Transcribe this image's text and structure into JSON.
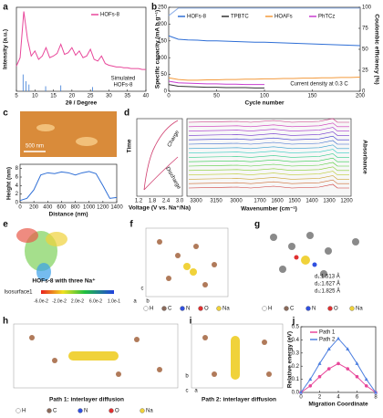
{
  "panels": [
    "a",
    "b",
    "c",
    "d",
    "e",
    "f",
    "g",
    "h",
    "i",
    "j"
  ],
  "chart_data": [
    {
      "type": "line",
      "x_label": "2θ / Degree",
      "y_label": "Intensity (a.u.)",
      "x": [
        5,
        6,
        7,
        8,
        9,
        10,
        11,
        12,
        13,
        14,
        15,
        16,
        17,
        18,
        19,
        20,
        21,
        22,
        23,
        24,
        25,
        26,
        27,
        28,
        29,
        30,
        31,
        32,
        33,
        34,
        35,
        36,
        37,
        38,
        39,
        40
      ],
      "series": [
        {
          "name": "HOFs-8",
          "color": "#e8479a",
          "values": [
            0.3,
            0.4,
            0.95,
            0.62,
            0.42,
            0.48,
            0.38,
            0.42,
            0.52,
            0.4,
            0.42,
            0.45,
            0.56,
            0.44,
            0.46,
            0.52,
            0.43,
            0.48,
            0.4,
            0.42,
            0.5,
            0.38,
            0.36,
            0.42,
            0.33,
            0.31,
            0.3,
            0.29,
            0.29,
            0.28,
            0.28,
            0.27,
            0.27,
            0.27,
            0.26,
            0.26
          ]
        },
        {
          "name": "Simulated",
          "type": "stem",
          "color": "#3a7bd5",
          "x": [
            6.8,
            7.6,
            8.4,
            12.9,
            17,
            25.6
          ],
          "values": [
            0.2,
            0.12,
            0.08,
            0.06,
            0.07,
            0.05
          ]
        }
      ],
      "annotations": [
        "HOFs-8"
      ],
      "xlim": [
        5,
        40
      ],
      "xticks": [
        5,
        10,
        15,
        20,
        25,
        30,
        35,
        40
      ],
      "ylim": [
        0,
        1
      ]
    },
    {
      "type": "line",
      "x_label": "Cycle number",
      "y_label": "Specific capacity (mA h g⁻¹)",
      "y2_label": "Coulombic efficiency (%)",
      "x": [
        0,
        10,
        20,
        30,
        40,
        50,
        60,
        70,
        80,
        90,
        100,
        110,
        120,
        130,
        140,
        150,
        160,
        170,
        180,
        190,
        200
      ],
      "series": [
        {
          "name": "HOFs-8",
          "color": "#2f6fd6",
          "values": [
            165,
            155,
            153,
            152,
            150,
            150,
            149,
            148,
            147,
            146,
            146,
            145,
            144,
            143,
            142,
            141,
            140,
            139,
            138,
            137,
            136
          ]
        },
        {
          "name": "TPBTC",
          "color": "#333333",
          "values": [
            20,
            15,
            14,
            13,
            12,
            12,
            11,
            11,
            11,
            10,
            10,
            null,
            null,
            null,
            null,
            null,
            null,
            null,
            null,
            null,
            null
          ]
        },
        {
          "name": "HOAFs",
          "color": "#f39a3c",
          "values": [
            40,
            35,
            33,
            33,
            34,
            34,
            35,
            35,
            36,
            36,
            37,
            37,
            38,
            38,
            39,
            39,
            40,
            40,
            41,
            41,
            42
          ]
        },
        {
          "name": "PhTCz",
          "color": "#c83ed1",
          "values": [
            30,
            25,
            24,
            23,
            22,
            22,
            21,
            21,
            20,
            20,
            20,
            null,
            null,
            null,
            null,
            null,
            null,
            null,
            null,
            null,
            null
          ]
        },
        {
          "color": "#8fb0e8",
          "axis": "y2",
          "values": [
            90,
            99,
            99,
            99,
            99,
            99,
            99,
            99,
            99,
            99,
            99,
            99,
            99,
            99,
            99,
            99,
            99,
            99,
            99,
            99,
            99
          ]
        }
      ],
      "annotations": [
        "Current density at 0.3 C"
      ],
      "xlim": [
        0,
        200
      ],
      "xticks": [
        0,
        50,
        100,
        150,
        200
      ],
      "ylim": [
        0,
        250
      ],
      "yticks": [
        0,
        50,
        100,
        150,
        200,
        250
      ],
      "y2lim": [
        0,
        100
      ],
      "y2ticks": [
        0,
        25,
        50,
        75,
        100
      ]
    },
    {
      "type": "line",
      "x_label": "Distance (nm)",
      "y_label": "Height (nm)",
      "x": [
        0,
        100,
        200,
        300,
        400,
        500,
        600,
        700,
        800,
        900,
        1000,
        1100,
        1200,
        1300,
        1400
      ],
      "series": [
        {
          "color": "#2f6fd6",
          "values": [
            0.5,
            1,
            3,
            6.5,
            7,
            6.8,
            7.2,
            7,
            6.5,
            7,
            7.3,
            6.8,
            4,
            1,
            1.2
          ]
        }
      ],
      "annotations": [
        "500 nm"
      ],
      "xlim": [
        0,
        1400
      ],
      "xticks": [
        0,
        200,
        400,
        600,
        800,
        1000,
        1200,
        1400
      ],
      "ylim": [
        0,
        9
      ],
      "yticks": [
        0,
        2,
        4,
        6,
        8
      ]
    },
    {
      "type": "line",
      "x_label": "Migration Coordinate",
      "y_label": "Relative energy (eV)",
      "x": [
        0,
        1,
        2,
        3,
        4,
        5,
        6,
        7,
        8
      ],
      "series": [
        {
          "name": "Path 1",
          "color": "#e8479a",
          "marker": "circle",
          "values": [
            0,
            0.05,
            0.12,
            0.18,
            0.22,
            0.18,
            0.12,
            0.05,
            0
          ]
        },
        {
          "name": "Path 2",
          "color": "#4d7fe0",
          "marker": "triangle",
          "values": [
            0,
            0.1,
            0.22,
            0.33,
            0.41,
            0.33,
            0.22,
            0.1,
            0
          ]
        }
      ],
      "xlim": [
        0,
        8
      ],
      "xticks": [
        0,
        2,
        4,
        6,
        8
      ],
      "ylim": [
        0,
        0.5
      ],
      "yticks": [
        {
          "value": 0,
          "label": "0.0"
        },
        0.1,
        0.2,
        0.3,
        0.4,
        0.5
      ]
    }
  ],
  "panel_d": {
    "time": "Time",
    "charge": "Charge",
    "discharge": "Discharge",
    "voltage_label": "Voltage (V vs. Na⁺/Na)",
    "voltage_ticks": [
      "1.2",
      "1.8",
      "2.4",
      "3.0"
    ],
    "wavenumber_label": "Wavenumber (cm⁻¹)",
    "wavenumber_ticks": [
      "3300",
      "3150",
      "3000",
      "1700",
      "1600",
      "1500",
      "1400",
      "1300",
      "1200"
    ],
    "absorbance": "Absorbance"
  },
  "panel_e": {
    "caption": "HOFs-8 with three Na⁺",
    "isosurface": "Isosurface1",
    "scale": [
      "-6.0e-2",
      "-2.0e-2",
      "2.0e-2",
      "6.0e-2",
      "1.0e-1"
    ]
  },
  "panel_f": {
    "axes": [
      "a",
      "b",
      "c"
    ],
    "legend": [
      "H",
      "C",
      "N",
      "O",
      "Na"
    ]
  },
  "panel_g": {
    "distances": [
      "d₁:1.513 Å",
      "d₂:1.627 Å",
      "d₃:1.825 Å"
    ],
    "legend": [
      "H",
      "C",
      "N",
      "O",
      "Na"
    ]
  },
  "panel_h": {
    "caption": "Path 1: interlayer diffusion",
    "legend": [
      "H",
      "C",
      "N",
      "O",
      "Na"
    ]
  },
  "panel_i": {
    "caption": "Path 2: interlayer diffusion",
    "axes": [
      "b",
      "c",
      "a"
    ]
  }
}
